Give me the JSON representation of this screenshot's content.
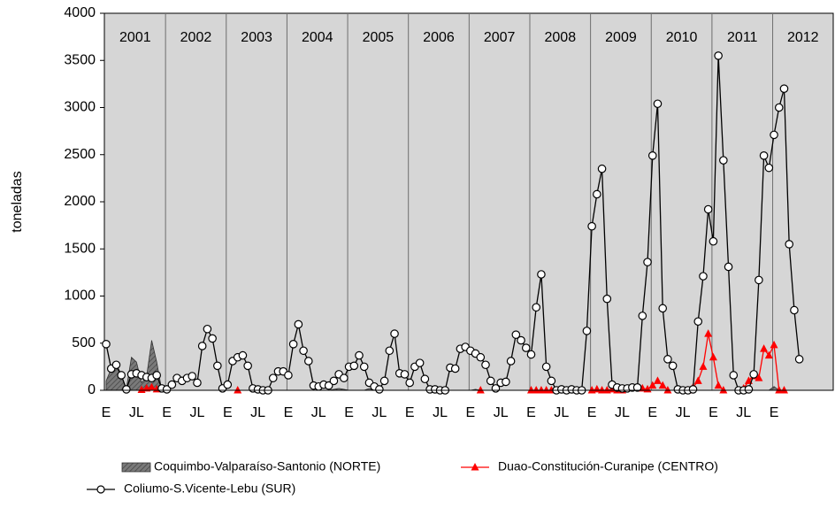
{
  "chart_data": {
    "type": "line",
    "ylabel": "toneladas",
    "ylim": [
      0,
      4000
    ],
    "yticks": [
      0,
      500,
      1000,
      1500,
      2000,
      2500,
      3000,
      3500,
      4000
    ],
    "years": [
      "2001",
      "2002",
      "2003",
      "2004",
      "2005",
      "2006",
      "2007",
      "2008",
      "2009",
      "2010",
      "2011",
      "2012"
    ],
    "categories": [
      "E",
      null,
      null,
      null,
      null,
      null,
      "JL",
      null,
      null,
      null,
      null,
      null,
      "E",
      null,
      null,
      null,
      null,
      null,
      "JL",
      null,
      null,
      null,
      null,
      null,
      "E",
      null,
      null,
      null,
      null,
      null,
      "JL",
      null,
      null,
      null,
      null,
      null,
      "E",
      null,
      null,
      null,
      null,
      null,
      "JL",
      null,
      null,
      null,
      null,
      null,
      "E",
      null,
      null,
      null,
      null,
      null,
      "JL",
      null,
      null,
      null,
      null,
      null,
      "E",
      null,
      null,
      null,
      null,
      null,
      "JL",
      null,
      null,
      null,
      null,
      null,
      "E",
      null,
      null,
      null,
      null,
      null,
      "JL",
      null,
      null,
      null,
      null,
      null,
      "E",
      null,
      null,
      null,
      null,
      null,
      "JL",
      null,
      null,
      null,
      null,
      null,
      "E",
      null,
      null,
      null,
      null,
      null,
      "JL",
      null,
      null,
      null,
      null,
      null,
      "E",
      null,
      null,
      null,
      null,
      null,
      "JL",
      null,
      null,
      null,
      null,
      null,
      "E",
      null,
      null,
      null,
      null,
      null,
      "JL",
      null,
      null,
      null,
      null,
      null,
      "E",
      null,
      null,
      null,
      null,
      null
    ],
    "legend": "bottom",
    "series": [
      {
        "name": "Coquimbo-Valparaíso-Santonio (NORTE)",
        "kind": "area",
        "color": "#808080",
        "values": [
          100,
          230,
          250,
          150,
          20,
          350,
          300,
          80,
          150,
          530,
          300,
          0,
          0,
          0,
          0,
          0,
          0,
          0,
          0,
          0,
          0,
          0,
          0,
          0,
          0,
          0,
          0,
          0,
          0,
          0,
          0,
          0,
          0,
          0,
          0,
          0,
          0,
          0,
          0,
          0,
          0,
          0,
          0,
          0,
          0,
          10,
          20,
          10,
          0,
          0,
          0,
          0,
          20,
          0,
          0,
          0,
          0,
          0,
          0,
          0,
          0,
          0,
          0,
          0,
          0,
          0,
          0,
          0,
          0,
          0,
          0,
          0,
          0,
          10,
          0,
          0,
          0,
          0,
          0,
          0,
          0,
          0,
          0,
          0,
          0,
          0,
          0,
          0,
          0,
          0,
          0,
          0,
          0,
          0,
          0,
          0,
          0,
          0,
          0,
          0,
          0,
          0,
          0,
          0,
          0,
          0,
          0,
          0,
          0,
          0,
          0,
          0,
          0,
          0,
          0,
          0,
          0,
          0,
          0,
          0,
          0,
          0,
          0,
          0,
          0,
          0,
          0,
          0,
          0,
          0,
          0,
          0,
          40,
          0,
          0,
          0,
          0,
          0
        ]
      },
      {
        "name": "Duao-Constitución-Curanipe (CENTRO)",
        "kind": "triangle",
        "color": "#ff0000",
        "values": [
          null,
          null,
          null,
          null,
          null,
          null,
          null,
          5,
          20,
          30,
          10,
          null,
          null,
          null,
          null,
          null,
          null,
          null,
          null,
          null,
          null,
          null,
          null,
          null,
          null,
          null,
          0,
          null,
          null,
          null,
          null,
          null,
          null,
          null,
          null,
          null,
          null,
          null,
          null,
          null,
          null,
          null,
          null,
          null,
          null,
          null,
          null,
          null,
          null,
          null,
          null,
          null,
          null,
          null,
          null,
          null,
          null,
          null,
          null,
          null,
          null,
          null,
          null,
          null,
          null,
          null,
          null,
          null,
          null,
          null,
          null,
          null,
          null,
          null,
          0,
          null,
          null,
          null,
          null,
          null,
          null,
          null,
          null,
          null,
          0,
          0,
          0,
          0,
          0,
          null,
          null,
          null,
          null,
          null,
          null,
          null,
          0,
          10,
          0,
          0,
          10,
          0,
          0,
          null,
          null,
          null,
          20,
          10,
          50,
          100,
          50,
          0,
          null,
          null,
          null,
          0,
          30,
          100,
          250,
          600,
          350,
          50,
          0,
          null,
          null,
          null,
          20,
          100,
          150,
          130,
          440,
          370,
          480,
          0,
          0,
          null,
          null,
          null
        ]
      },
      {
        "name": "Coliumo-S.Vicente-Lebu (SUR)",
        "kind": "circle",
        "color": "#000000",
        "values": [
          490,
          230,
          270,
          160,
          10,
          170,
          180,
          160,
          140,
          130,
          160,
          20,
          10,
          60,
          130,
          100,
          130,
          150,
          80,
          470,
          650,
          550,
          260,
          20,
          60,
          310,
          350,
          370,
          260,
          20,
          10,
          0,
          0,
          130,
          200,
          200,
          160,
          490,
          700,
          420,
          310,
          50,
          40,
          60,
          50,
          100,
          170,
          130,
          250,
          260,
          370,
          250,
          80,
          40,
          10,
          100,
          420,
          600,
          180,
          170,
          80,
          250,
          290,
          120,
          10,
          10,
          0,
          0,
          240,
          230,
          440,
          460,
          420,
          390,
          350,
          270,
          100,
          20,
          80,
          90,
          310,
          590,
          530,
          450,
          380,
          880,
          1230,
          250,
          100,
          0,
          10,
          0,
          10,
          0,
          0,
          630,
          1740,
          2080,
          2350,
          970,
          60,
          30,
          20,
          20,
          30,
          30,
          790,
          1360,
          2490,
          3040,
          870,
          330,
          260,
          10,
          0,
          0,
          10,
          730,
          1210,
          1920,
          1580,
          3550,
          2440,
          1310,
          160,
          0,
          0,
          10,
          170,
          1170,
          2490,
          2360,
          2710,
          3000,
          3200,
          1550,
          850,
          330
        ]
      }
    ]
  }
}
